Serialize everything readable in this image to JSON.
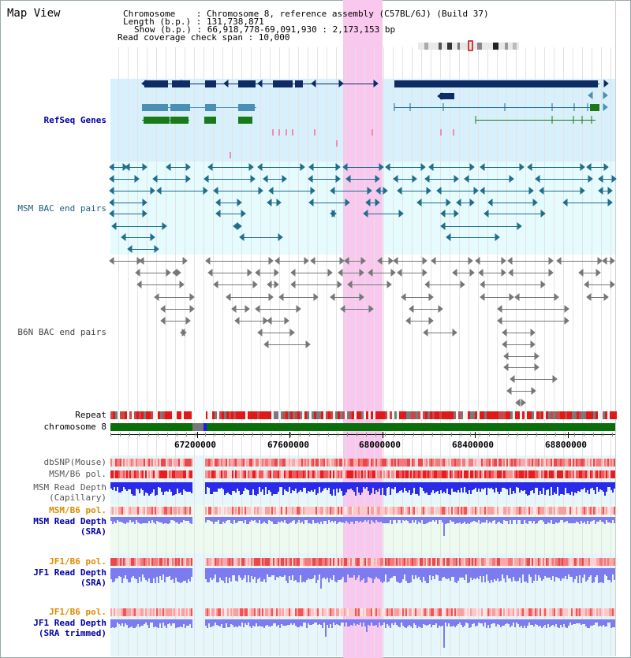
{
  "title": "Map View",
  "info": {
    "chromosome": "Chromosome    : Chromosome 8, reference assembly (C57BL/6J) (Build 37)",
    "length": "Length (b.p.) : 131,738,871",
    "show": "Show (b.p.) : 66,918,778-69,091,930 : 2,173,153 bp",
    "coverage": "Read coverage check span : 10,000"
  },
  "tracks": {
    "refseq": "RefSeq Genes",
    "msm_bac": "MSM BAC end pairs",
    "b6n_bac": "B6N BAC end pairs",
    "repeat": "Repeat",
    "chromosome": "chromosome 8",
    "dbsnp": "dbSNP(Mouse)",
    "msm_b6_pol_1": "MSM/B6 pol.",
    "msm_depth_cap_1": "MSM Read Depth",
    "msm_depth_cap_2": "(Capillary)",
    "msm_b6_pol_2": "MSM/B6 pol.",
    "msm_depth_sra_1": "MSM Read Depth",
    "msm_depth_sra_2": "(SRA)",
    "jf1_b6_pol_1": "JF1/B6 pol.",
    "jf1_depth_sra_1": "JF1 Read Depth",
    "jf1_depth_sra_2": "(SRA)",
    "jf1_b6_pol_2": "JF1/B6 pol.",
    "jf1_depth_trim_1": "JF1 Read Depth",
    "jf1_depth_trim_2": "(SRA trimmed)"
  },
  "axis_ticks": [
    "67200000",
    "67600000",
    "68000000",
    "68400000",
    "68800000"
  ],
  "colors": {
    "highlight": "#f9c8ee",
    "refseq_bg": "#d8f0fb",
    "bac_bg": "#e6fbfd",
    "lower_bg": "#e6f6fb",
    "gene_dark": "#0d2b66",
    "gene_mid": "#4a8fb5",
    "gene_green": "#1a7a1a",
    "bac_teal": "#1f6e8c",
    "bac_gray": "#777777",
    "chrom_green": "#0a6e0a",
    "depth_blue": "#2a2ae8",
    "depth_light": "#7c7cf0"
  }
}
